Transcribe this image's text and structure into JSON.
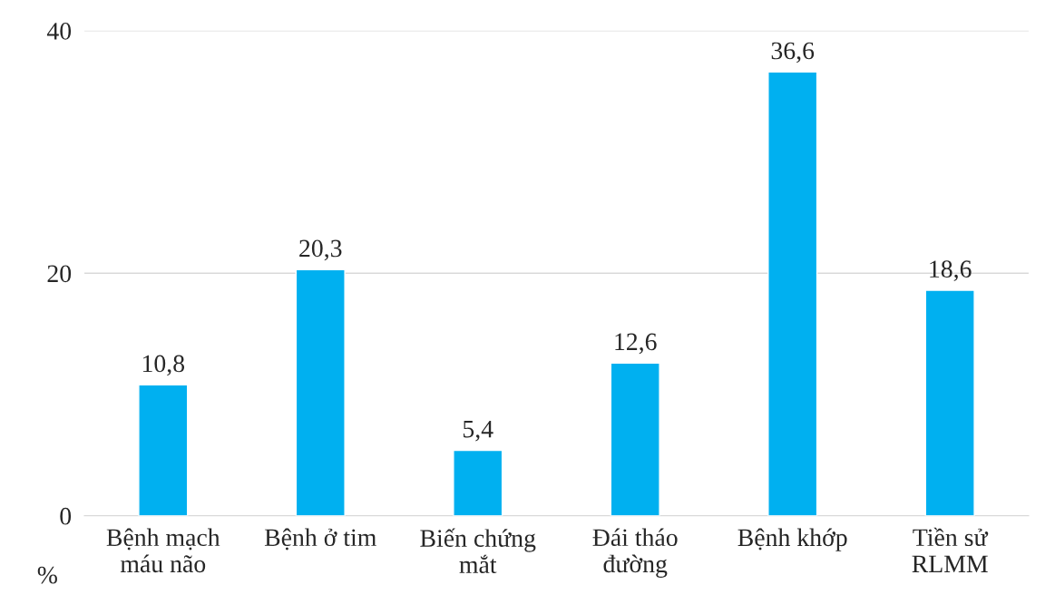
{
  "chart_data": {
    "type": "bar",
    "categories": [
      "Bệnh mạch\nmáu não",
      "Bệnh ở tim",
      "Biến chứng\nmắt",
      "Đái tháo\nđường",
      "Bệnh khớp",
      "Tiền sử\nRLMM"
    ],
    "values": [
      10.8,
      20.3,
      5.4,
      12.6,
      36.6,
      18.6
    ],
    "color": "#00b0f0",
    "ylabel": "%",
    "ylim": [
      0,
      40
    ],
    "yticks": [
      0,
      20,
      40
    ],
    "value_labels": [
      "10,8",
      "20,3",
      "5,4",
      "12,6",
      "36,6",
      "18,6"
    ],
    "grid": "y"
  }
}
